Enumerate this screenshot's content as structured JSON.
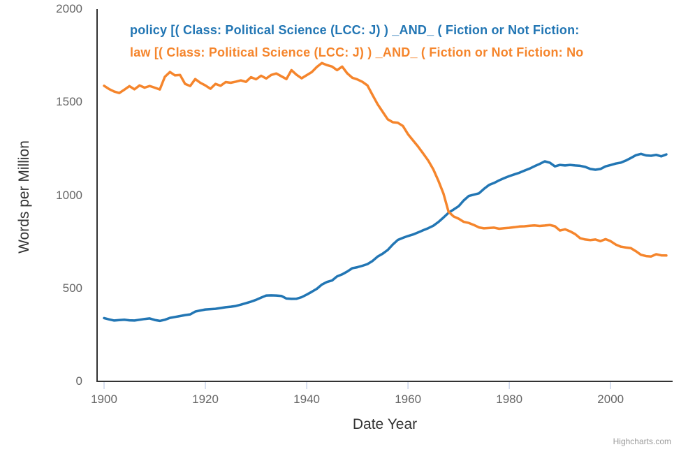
{
  "colors": {
    "background": "#ffffff",
    "axis_line": "#333333",
    "tick": "#ccd6eb",
    "tick_label": "#666666",
    "axis_title": "#333333",
    "credit": "#999999",
    "policy_series": "#2276b4",
    "law_series": "#f5852c"
  },
  "credit_label": "Highcharts.com",
  "chart_data": {
    "type": "line",
    "title": "",
    "xlabel": "Date Year",
    "ylabel": "Words per Million",
    "legend_position": "top-left",
    "grid": false,
    "xlim": [
      1900,
      2011
    ],
    "ylim": [
      0,
      2000
    ],
    "xticks": [
      1900,
      1920,
      1940,
      1960,
      1980,
      2000
    ],
    "yticks": [
      0,
      500,
      1000,
      1500,
      2000
    ],
    "x": [
      1900,
      1901,
      1902,
      1903,
      1904,
      1905,
      1906,
      1907,
      1908,
      1909,
      1910,
      1911,
      1912,
      1913,
      1914,
      1915,
      1916,
      1917,
      1918,
      1919,
      1920,
      1921,
      1922,
      1923,
      1924,
      1925,
      1926,
      1927,
      1928,
      1929,
      1930,
      1931,
      1932,
      1933,
      1934,
      1935,
      1936,
      1937,
      1938,
      1939,
      1940,
      1941,
      1942,
      1943,
      1944,
      1945,
      1946,
      1947,
      1948,
      1949,
      1950,
      1951,
      1952,
      1953,
      1954,
      1955,
      1956,
      1957,
      1958,
      1959,
      1960,
      1961,
      1962,
      1963,
      1964,
      1965,
      1966,
      1967,
      1968,
      1969,
      1970,
      1971,
      1972,
      1973,
      1974,
      1975,
      1976,
      1977,
      1978,
      1979,
      1980,
      1981,
      1982,
      1983,
      1984,
      1985,
      1986,
      1987,
      1988,
      1989,
      1990,
      1991,
      1992,
      1993,
      1994,
      1995,
      1996,
      1997,
      1998,
      1999,
      2000,
      2001,
      2002,
      2003,
      2004,
      2005,
      2006,
      2007,
      2008,
      2009,
      2010,
      2011
    ],
    "series": [
      {
        "name": "policy [( Class: Political Science (LCC: J) ) _AND_ ( Fiction or Not Fiction:",
        "color": "#2276b4",
        "values": [
          340,
          333,
          327,
          329,
          331,
          328,
          327,
          331,
          335,
          338,
          330,
          325,
          331,
          341,
          346,
          351,
          356,
          360,
          375,
          381,
          386,
          388,
          390,
          394,
          398,
          401,
          405,
          412,
          420,
          428,
          438,
          450,
          461,
          462,
          461,
          459,
          445,
          443,
          444,
          452,
          466,
          481,
          497,
          520,
          534,
          542,
          564,
          575,
          590,
          608,
          613,
          621,
          630,
          647,
          670,
          686,
          706,
          735,
          760,
          771,
          781,
          789,
          800,
          812,
          823,
          836,
          856,
          880,
          906,
          923,
          941,
          972,
          996,
          1003,
          1010,
          1034,
          1055,
          1066,
          1080,
          1092,
          1103,
          1112,
          1121,
          1132,
          1143,
          1156,
          1168,
          1182,
          1175,
          1155,
          1163,
          1160,
          1163,
          1160,
          1158,
          1152,
          1141,
          1137,
          1141,
          1155,
          1162,
          1170,
          1175,
          1186,
          1200,
          1215,
          1222,
          1214,
          1212,
          1217,
          1209,
          1219
        ]
      },
      {
        "name": "law [( Class: Political Science (LCC: J) ) _AND_ ( Fiction or Not Fiction: No",
        "color": "#f5852c",
        "values": [
          1588,
          1570,
          1557,
          1549,
          1567,
          1586,
          1569,
          1590,
          1578,
          1587,
          1578,
          1568,
          1636,
          1662,
          1644,
          1646,
          1598,
          1587,
          1624,
          1604,
          1590,
          1572,
          1598,
          1588,
          1608,
          1604,
          1610,
          1617,
          1609,
          1634,
          1623,
          1642,
          1627,
          1646,
          1654,
          1639,
          1624,
          1672,
          1647,
          1628,
          1645,
          1661,
          1689,
          1710,
          1699,
          1691,
          1672,
          1691,
          1655,
          1631,
          1622,
          1609,
          1590,
          1538,
          1489,
          1448,
          1408,
          1392,
          1389,
          1372,
          1328,
          1294,
          1261,
          1224,
          1186,
          1139,
          1078,
          1009,
          911,
          886,
          874,
          857,
          851,
          840,
          827,
          822,
          824,
          826,
          820,
          823,
          825,
          828,
          832,
          833,
          836,
          838,
          835,
          837,
          840,
          833,
          810,
          817,
          806,
          791,
          769,
          762,
          759,
          762,
          753,
          764,
          753,
          735,
          724,
          719,
          716,
          699,
          680,
          673,
          671,
          683,
          677,
          676
        ]
      }
    ]
  }
}
